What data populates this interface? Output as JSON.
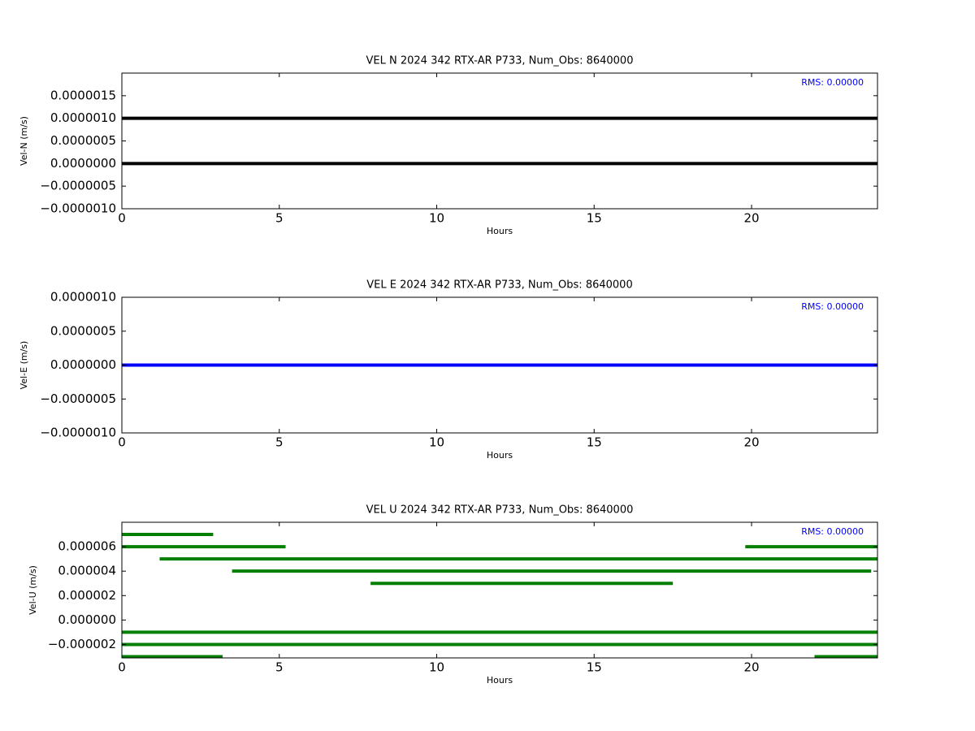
{
  "chart_data": [
    {
      "type": "line",
      "title": "VEL N 2024 342 RTX-AR  P733, Num_Obs: 8640000",
      "xlabel": "Hours",
      "ylabel": "Vel-N (m/s)",
      "annotation": "RMS:  0.00000",
      "xlim": [
        0,
        24
      ],
      "xticks": [
        0,
        5,
        10,
        15,
        20
      ],
      "ylim": [
        -1e-06,
        2e-06
      ],
      "yticks": [
        {
          "value": -1e-06,
          "label": "−0.0000010"
        },
        {
          "value": -5e-07,
          "label": "−0.0000005"
        },
        {
          "value": 0,
          "label": "0.0000000"
        },
        {
          "value": 5e-07,
          "label": "0.0000005"
        },
        {
          "value": 1e-06,
          "label": "0.0000010"
        },
        {
          "value": 1.5e-06,
          "label": "0.0000015"
        }
      ],
      "series": [
        {
          "color": "#000000",
          "x": [
            0,
            24
          ],
          "values": [
            1e-06,
            1e-06
          ]
        },
        {
          "color": "#000000",
          "x": [
            0,
            24
          ],
          "values": [
            0,
            0
          ]
        }
      ]
    },
    {
      "type": "line",
      "title": "VEL E 2024 342 RTX-AR  P733, Num_Obs: 8640000",
      "xlabel": "Hours",
      "ylabel": "Vel-E (m/s)",
      "annotation": "RMS:  0.00000",
      "xlim": [
        0,
        24
      ],
      "xticks": [
        0,
        5,
        10,
        15,
        20
      ],
      "ylim": [
        -1e-06,
        1e-06
      ],
      "yticks": [
        {
          "value": -1e-06,
          "label": "−0.0000010"
        },
        {
          "value": -5e-07,
          "label": "−0.0000005"
        },
        {
          "value": 0,
          "label": "0.0000000"
        },
        {
          "value": 5e-07,
          "label": "0.0000005"
        },
        {
          "value": 1e-06,
          "label": "0.0000010"
        }
      ],
      "series": [
        {
          "color": "#0000ff",
          "x": [
            0,
            24
          ],
          "values": [
            0,
            0
          ]
        }
      ]
    },
    {
      "type": "line",
      "title": "VEL U 2024 342 RTX-AR  P733, Num_Obs: 8640000",
      "xlabel": "Hours",
      "ylabel": "Vel-U (m/s)",
      "annotation": "RMS:  0.00000",
      "xlim": [
        0,
        24
      ],
      "xticks": [
        0,
        5,
        10,
        15,
        20
      ],
      "ylim": [
        -3.1e-06,
        8e-06
      ],
      "yticks": [
        {
          "value": -2e-06,
          "label": "−0.000002"
        },
        {
          "value": 0,
          "label": "0.000000"
        },
        {
          "value": 2e-06,
          "label": "0.000002"
        },
        {
          "value": 4e-06,
          "label": "0.000004"
        },
        {
          "value": 6e-06,
          "label": "0.000006"
        }
      ],
      "series": [
        {
          "color": "#007f00",
          "x": [
            0,
            2.9
          ],
          "values": [
            7e-06,
            7e-06
          ]
        },
        {
          "color": "#007f00",
          "x": [
            0,
            5.2
          ],
          "values": [
            6e-06,
            6e-06
          ]
        },
        {
          "color": "#007f00",
          "x": [
            19.8,
            24
          ],
          "values": [
            6e-06,
            6e-06
          ]
        },
        {
          "color": "#007f00",
          "x": [
            1.2,
            24
          ],
          "values": [
            5e-06,
            5e-06
          ]
        },
        {
          "color": "#007f00",
          "x": [
            3.5,
            23.8
          ],
          "values": [
            4e-06,
            4e-06
          ]
        },
        {
          "color": "#007f00",
          "x": [
            7.9,
            17.5
          ],
          "values": [
            3e-06,
            3e-06
          ]
        },
        {
          "color": "#007f00",
          "x": [
            0,
            24
          ],
          "values": [
            -1e-06,
            -1e-06
          ]
        },
        {
          "color": "#007f00",
          "x": [
            0,
            24
          ],
          "values": [
            -2e-06,
            -2e-06
          ]
        },
        {
          "color": "#007f00",
          "x": [
            0,
            3.2
          ],
          "values": [
            -3e-06,
            -3e-06
          ]
        },
        {
          "color": "#007f00",
          "x": [
            22,
            24
          ],
          "values": [
            -3e-06,
            -3e-06
          ]
        }
      ]
    }
  ]
}
